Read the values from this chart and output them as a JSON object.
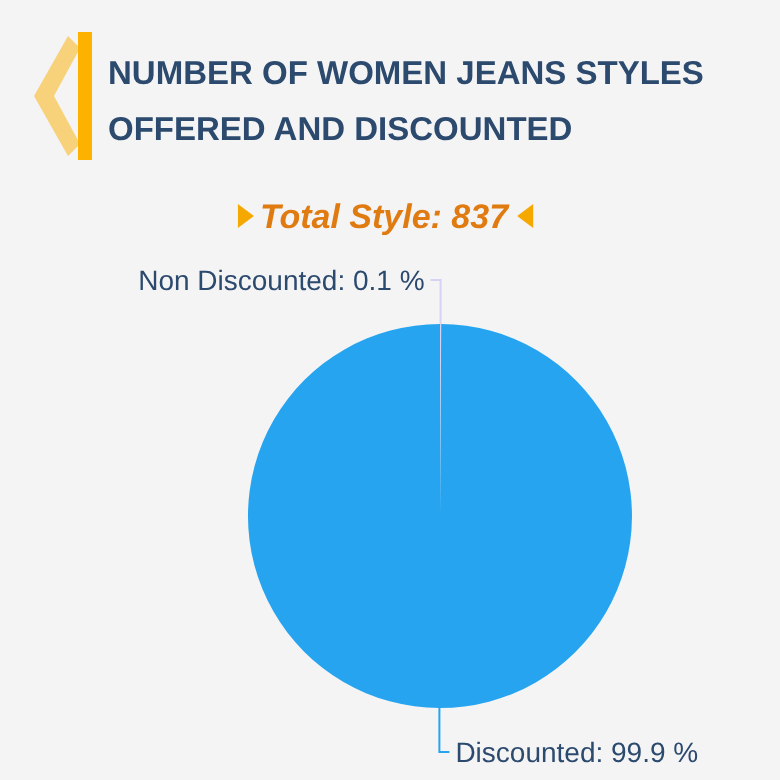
{
  "chart_data": {
    "type": "pie",
    "title": "NUMBER OF WOMEN JEANS STYLES\nOFFERED AND DISCOUNTED",
    "subtitle": "Total Style: 837",
    "categories": [
      "Non Discounted",
      "Discounted"
    ],
    "values": [
      0.1,
      99.9
    ],
    "colors": [
      "#d6d2f4",
      "#26a4ef"
    ],
    "value_labels": [
      "0.1 %",
      "99.9 %"
    ]
  }
}
